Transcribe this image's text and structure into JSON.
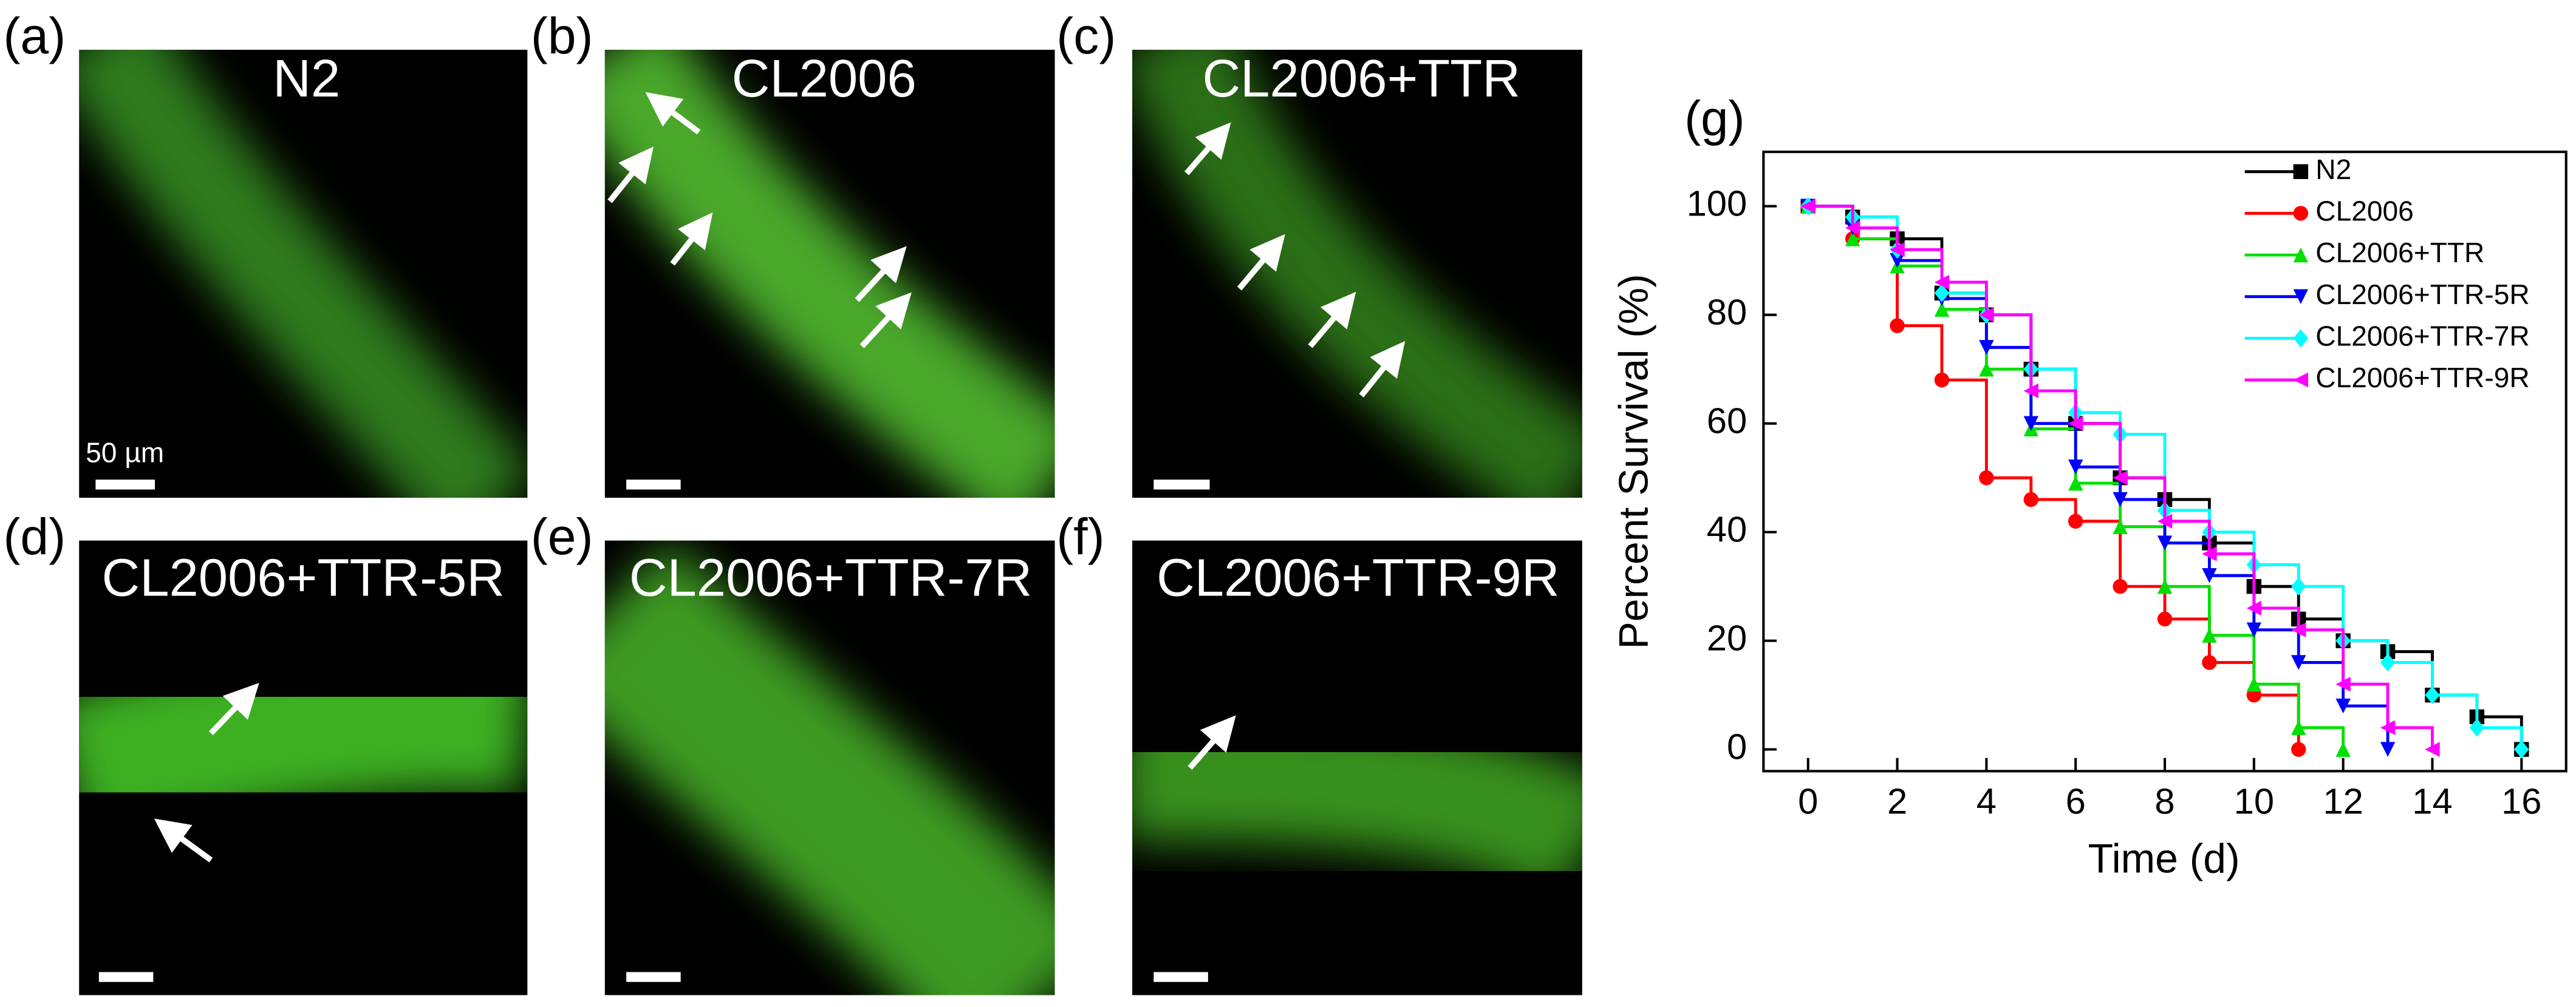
{
  "panels": [
    {
      "letter": "(a)",
      "title": "N2"
    },
    {
      "letter": "(b)",
      "title": "CL2006"
    },
    {
      "letter": "(c)",
      "title": "CL2006+TTR"
    },
    {
      "letter": "(d)",
      "title": "CL2006+TTR-5R"
    },
    {
      "letter": "(e)",
      "title": "CL2006+TTR-7R"
    },
    {
      "letter": "(f)",
      "title": "CL2006+TTR-9R"
    }
  ],
  "scale_bar_label": "50 µm",
  "chart_data": {
    "type": "step",
    "panel_label": "(g)",
    "x_label": "Time (d)",
    "y_label": "Percent Survival (%)",
    "x": [
      0,
      1,
      2,
      3,
      4,
      5,
      6,
      7,
      8,
      9,
      10,
      11,
      12,
      13,
      14,
      15,
      16
    ],
    "xlim": [
      -1,
      17
    ],
    "xticks": [
      0,
      2,
      4,
      6,
      8,
      10,
      12,
      14,
      16
    ],
    "ylim": [
      -4,
      110
    ],
    "yticks": [
      0,
      20,
      40,
      60,
      80,
      100
    ],
    "legend": "upper right",
    "series": [
      {
        "name": "N2",
        "color": "#000000",
        "marker": "square",
        "values": [
          100,
          98,
          94,
          84,
          80,
          70,
          60,
          50,
          46,
          38,
          30,
          24,
          20,
          18,
          10,
          6,
          0
        ]
      },
      {
        "name": "CL2006",
        "color": "#ff0000",
        "marker": "circle",
        "values": [
          100,
          94,
          78,
          68,
          50,
          46,
          42,
          30,
          24,
          16,
          10,
          0,
          null,
          null,
          null,
          null,
          null
        ]
      },
      {
        "name": "CL2006+TTR",
        "color": "#00e000",
        "marker": "triangle-up",
        "values": [
          100,
          94,
          89,
          81,
          70,
          59,
          49,
          41,
          30,
          21,
          12,
          4,
          0,
          null,
          null,
          null,
          null
        ]
      },
      {
        "name": "CL2006+TTR-5R",
        "color": "#0000ff",
        "marker": "triangle-down",
        "values": [
          100,
          96,
          90,
          83,
          74,
          60,
          52,
          46,
          38,
          32,
          22,
          16,
          8,
          0,
          null,
          null,
          null
        ]
      },
      {
        "name": "CL2006+TTR-7R",
        "color": "#00ffff",
        "marker": "diamond",
        "values": [
          100,
          98,
          92,
          84,
          80,
          70,
          62,
          58,
          44,
          40,
          34,
          30,
          20,
          16,
          10,
          4,
          0
        ]
      },
      {
        "name": "CL2006+TTR-9R",
        "color": "#ff00ff",
        "marker": "triangle-left",
        "values": [
          100,
          96,
          92,
          86,
          80,
          66,
          60,
          50,
          42,
          36,
          26,
          22,
          12,
          4,
          0,
          null,
          null
        ]
      }
    ]
  }
}
